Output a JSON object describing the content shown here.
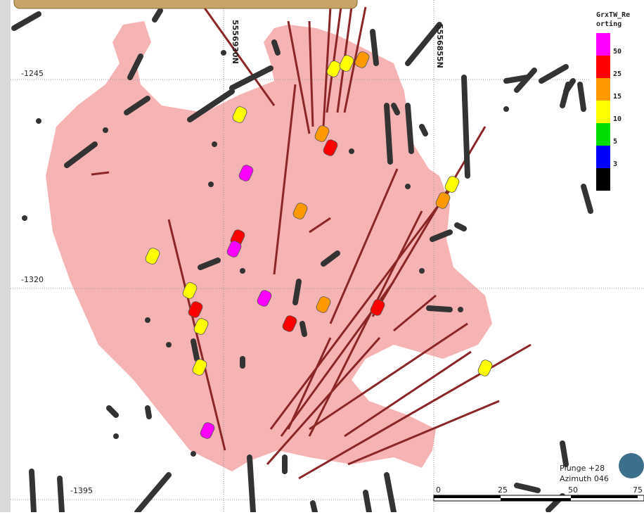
{
  "grid_labels": {
    "northings": [
      "5556930N",
      "5556855N"
    ],
    "elevations": [
      "-1245",
      "-1320",
      "-1395"
    ]
  },
  "legend": {
    "title_lines": [
      "GrxTW_Re",
      "orting"
    ],
    "items": [
      {
        "label": "50",
        "color": "#ff00ff"
      },
      {
        "label": "25",
        "color": "#ff0000"
      },
      {
        "label": "15",
        "color": "#ff9900"
      },
      {
        "label": "10",
        "color": "#ffff00"
      },
      {
        "label": "5",
        "color": "#00dd00"
      },
      {
        "label": "3",
        "color": "#0000ff"
      },
      {
        "label": null,
        "color": "#000000"
      }
    ]
  },
  "view": {
    "plunge": "Plunge +28",
    "azimuth": "Azimuth 046"
  },
  "scale_bar": {
    "labels": [
      "0",
      "25",
      "50",
      "75"
    ]
  }
}
